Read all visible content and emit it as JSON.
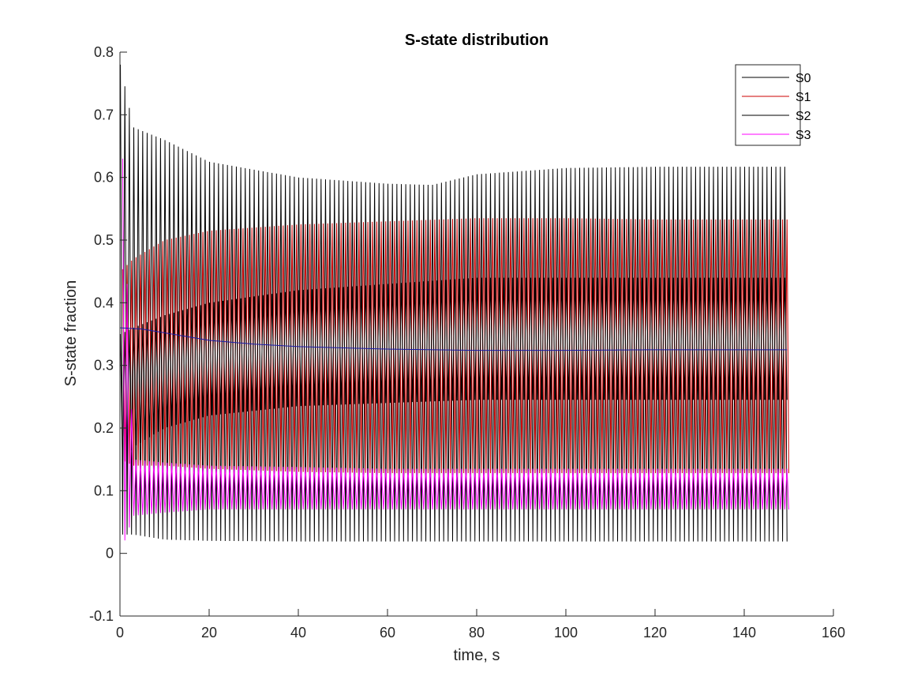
{
  "chart_data": {
    "type": "line",
    "title": "S-state distribution",
    "xlabel": "time, s",
    "ylabel": "S-state fraction",
    "xlim": [
      0,
      160
    ],
    "ylim": [
      -0.1,
      0.8
    ],
    "xticks": [
      0,
      20,
      40,
      60,
      80,
      100,
      120,
      140,
      160
    ],
    "yticks": [
      -0.1,
      0,
      0.1,
      0.2,
      0.3,
      0.4,
      0.5,
      0.6,
      0.7,
      0.8
    ],
    "xtick_labels": [
      "0",
      "20",
      "40",
      "60",
      "80",
      "100",
      "120",
      "140",
      "160"
    ],
    "ytick_labels": [
      "-0.1",
      "0",
      "0.1",
      "0.2",
      "0.3",
      "0.4",
      "0.5",
      "0.6",
      "0.7",
      "0.8"
    ],
    "grid": false,
    "legend_position": "top-right",
    "flash_period_s": 1,
    "time_end_s": 150,
    "series": [
      {
        "name": "S0",
        "color": "#000000",
        "t": [
          0.1,
          3,
          10,
          20,
          40,
          60,
          70,
          80,
          100,
          120,
          150
        ],
        "upper": [
          0.78,
          0.68,
          0.66,
          0.625,
          0.6,
          0.59,
          0.588,
          0.605,
          0.615,
          0.617,
          0.617
        ],
        "lower": [
          0.03,
          0.03,
          0.022,
          0.02,
          0.019,
          0.019,
          0.019,
          0.019,
          0.019,
          0.019,
          0.019
        ]
      },
      {
        "name": "S1",
        "color": "#cc0000",
        "t": [
          0.1,
          3,
          10,
          20,
          40,
          60,
          80,
          100,
          120,
          150
        ],
        "upper": [
          0.45,
          0.47,
          0.5,
          0.515,
          0.525,
          0.53,
          0.535,
          0.535,
          0.533,
          0.533
        ],
        "lower": [
          0.15,
          0.14,
          0.14,
          0.135,
          0.13,
          0.128,
          0.128,
          0.128,
          0.128,
          0.128
        ]
      },
      {
        "name": "S2",
        "color": "#000000",
        "t": [
          0.1,
          3,
          10,
          20,
          40,
          60,
          80,
          100,
          120,
          150
        ],
        "upper": [
          0.35,
          0.36,
          0.38,
          0.4,
          0.42,
          0.43,
          0.44,
          0.44,
          0.44,
          0.44
        ],
        "lower": [
          0.13,
          0.17,
          0.2,
          0.22,
          0.235,
          0.24,
          0.245,
          0.245,
          0.245,
          0.245
        ]
      },
      {
        "name": "S3",
        "color": "#ff00ff",
        "t": [
          0.1,
          3,
          10,
          20,
          40,
          60,
          80,
          100,
          120,
          150
        ],
        "upper": [
          0.73,
          0.15,
          0.145,
          0.14,
          0.138,
          0.135,
          0.135,
          0.135,
          0.135,
          0.135
        ],
        "lower": [
          0.0,
          0.06,
          0.065,
          0.07,
          0.07,
          0.07,
          0.07,
          0.07,
          0.07,
          0.07
        ]
      }
    ],
    "mean_line": {
      "color": "#1a1aa6",
      "t": [
        0.1,
        5,
        10,
        20,
        30,
        40,
        60,
        80,
        100,
        120,
        150
      ],
      "y": [
        0.36,
        0.358,
        0.352,
        0.34,
        0.334,
        0.33,
        0.326,
        0.324,
        0.324,
        0.325,
        0.325
      ]
    }
  }
}
